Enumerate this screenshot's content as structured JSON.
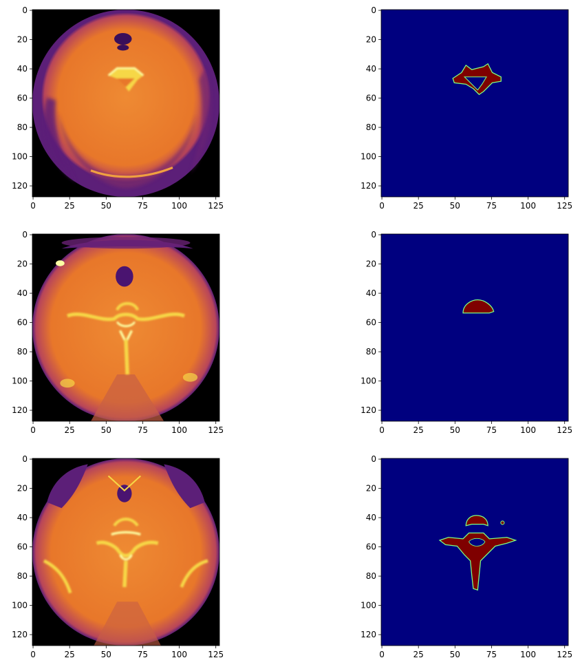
{
  "figure": {
    "rows": 3,
    "cols": 2,
    "panels": [
      {
        "kind": "ct",
        "slice": 0
      },
      {
        "kind": "mask",
        "slice": 0
      },
      {
        "kind": "ct",
        "slice": 1
      },
      {
        "kind": "mask",
        "slice": 1
      },
      {
        "kind": "ct",
        "slice": 2
      },
      {
        "kind": "mask",
        "slice": 2
      }
    ],
    "axis": {
      "x_ticks": [
        0,
        25,
        50,
        75,
        100,
        125
      ],
      "y_ticks": [
        0,
        20,
        40,
        60,
        80,
        100,
        120
      ],
      "range": [
        -0.5,
        127.5
      ]
    },
    "colormaps": {
      "ct": "inferno",
      "mask": "jet"
    },
    "colors": {
      "ct_background": "#000000",
      "ct_dark_tissue": "#5c1f78",
      "ct_soft_tissue": "#e8772a",
      "ct_bone": "#f6d746",
      "ct_bone_bright": "#fcffa4",
      "mask_background": "#00007f",
      "mask_foreground": "#7f0000",
      "mask_edge": "#7fff7f"
    }
  }
}
